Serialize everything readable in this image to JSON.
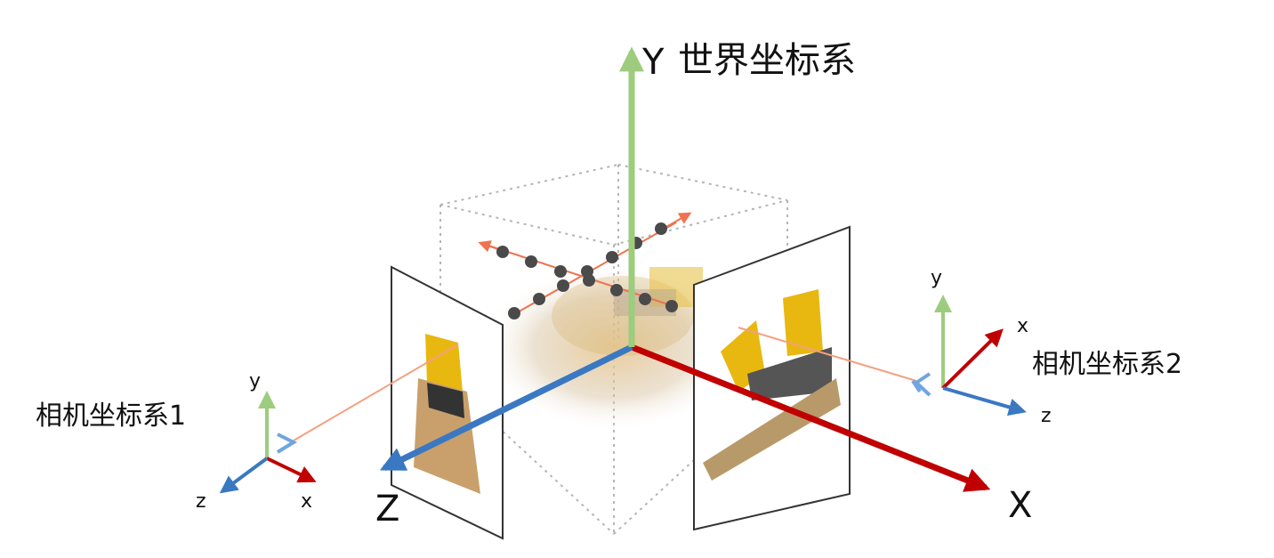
{
  "world": {
    "y_label": "Y",
    "title": "世界坐标系",
    "x_label": "X",
    "z_label": "Z",
    "colors": {
      "x": "#c00000",
      "y": "#9dcc7e",
      "z": "#3a78c2"
    }
  },
  "camera1": {
    "label": "相机坐标系1",
    "x_label": "x",
    "y_label": "y",
    "z_label": "z"
  },
  "camera2": {
    "label": "相机坐标系2",
    "x_label": "x",
    "y_label": "y",
    "z_label": "z"
  },
  "rays": {
    "color": "#f0724f",
    "point_color": "#4a4a4a"
  },
  "images": {
    "object": "yellow-bulldozer"
  }
}
